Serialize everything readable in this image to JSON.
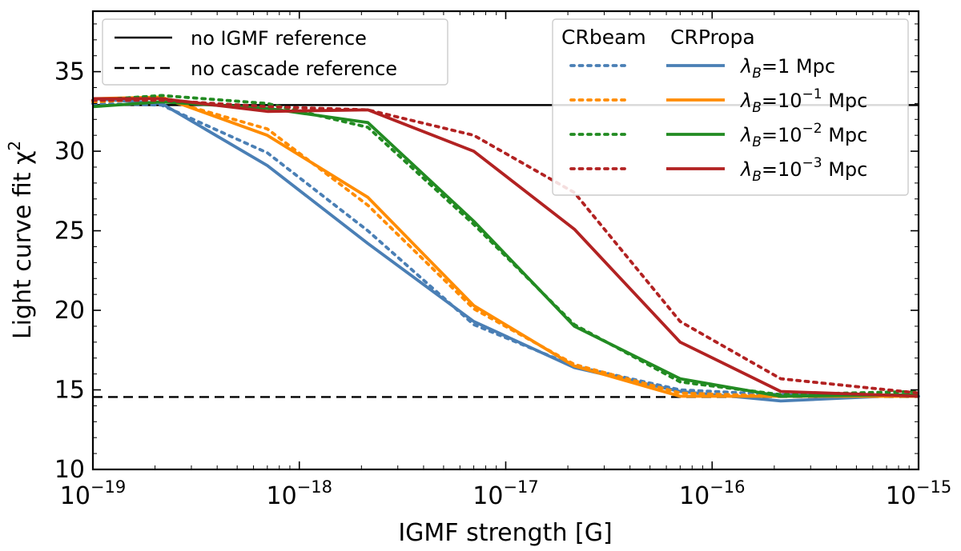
{
  "chart_data": {
    "type": "line",
    "xlabel": "IGMF strength [G]",
    "ylabel": "Light curve fit χ",
    "ylabel_sup": "2",
    "xscale": "log",
    "xlim": [
      1e-19,
      1e-15
    ],
    "ylim": [
      10,
      38.8
    ],
    "x_ticks": [
      {
        "value": 1e-19,
        "base": "10",
        "exp": "−19"
      },
      {
        "value": 1e-18,
        "base": "10",
        "exp": "−18"
      },
      {
        "value": 1e-17,
        "base": "10",
        "exp": "−17"
      },
      {
        "value": 1e-16,
        "base": "10",
        "exp": "−16"
      },
      {
        "value": 1e-15,
        "base": "10",
        "exp": "−15"
      }
    ],
    "y_ticks": [
      {
        "value": 10,
        "label": "10"
      },
      {
        "value": 15,
        "label": "15"
      },
      {
        "value": 20,
        "label": "20"
      },
      {
        "value": 25,
        "label": "25"
      },
      {
        "value": 30,
        "label": "30"
      },
      {
        "value": 35,
        "label": "35"
      }
    ],
    "grid": false,
    "x": [
      1e-19,
      2.15e-19,
      7e-19,
      2.15e-18,
      7e-18,
      2.15e-17,
      7e-17,
      2.15e-16,
      1e-15
    ],
    "reference_lines": [
      {
        "name": "no IGMF reference",
        "y": 32.9,
        "style": "solid",
        "color": "#000000"
      },
      {
        "name": "no cascade reference",
        "y": 14.55,
        "style": "dashed",
        "color": "#000000"
      }
    ],
    "series": [
      {
        "code": "CRPropa",
        "lambda_exp": "",
        "label_value": "1",
        "color": "#4a7fb5",
        "style": "solid",
        "values": [
          33.3,
          33.0,
          29.1,
          24.2,
          19.3,
          16.4,
          14.9,
          14.3,
          14.7
        ]
      },
      {
        "code": "CRbeam",
        "lambda_exp": "",
        "label_value": "1",
        "color": "#4a7fb5",
        "style": "dotted",
        "values": [
          33.0,
          32.9,
          29.9,
          25.0,
          19.1,
          16.5,
          15.0,
          14.7,
          14.6
        ]
      },
      {
        "code": "CRPropa",
        "lambda_exp": "−1",
        "label_value": "10",
        "color": "#ff8c00",
        "style": "solid",
        "values": [
          33.3,
          33.4,
          31.0,
          27.1,
          20.3,
          16.5,
          14.6,
          14.6,
          14.6
        ]
      },
      {
        "code": "CRbeam",
        "lambda_exp": "−1",
        "label_value": "10",
        "color": "#ff8c00",
        "style": "dotted",
        "values": [
          33.1,
          33.3,
          31.4,
          26.6,
          20.1,
          16.6,
          14.8,
          14.6,
          14.6
        ]
      },
      {
        "code": "CRPropa",
        "lambda_exp": "−2",
        "label_value": "10",
        "color": "#228b22",
        "style": "solid",
        "values": [
          32.8,
          33.1,
          32.7,
          31.8,
          25.6,
          19.0,
          15.7,
          14.6,
          14.7
        ]
      },
      {
        "code": "CRbeam",
        "lambda_exp": "−2",
        "label_value": "10",
        "color": "#228b22",
        "style": "dotted",
        "values": [
          33.2,
          33.5,
          33.0,
          31.5,
          25.4,
          19.1,
          15.5,
          14.7,
          14.9
        ]
      },
      {
        "code": "CRPropa",
        "lambda_exp": "−3",
        "label_value": "10",
        "color": "#b22222",
        "style": "solid",
        "values": [
          33.3,
          33.3,
          32.5,
          32.6,
          30.0,
          25.1,
          18.0,
          14.9,
          14.6
        ]
      },
      {
        "code": "CRbeam",
        "lambda_exp": "−3",
        "label_value": "10",
        "color": "#b22222",
        "style": "dotted",
        "values": [
          33.2,
          33.2,
          32.8,
          32.6,
          31.0,
          27.4,
          19.3,
          15.7,
          14.8
        ]
      }
    ],
    "legend_left": {
      "placement": "top-left",
      "entries": [
        {
          "label": "no IGMF reference",
          "style": "solid"
        },
        {
          "label": "no cascade reference",
          "style": "dashed"
        }
      ]
    },
    "legend_right": {
      "placement": "top-right",
      "col1_title": "CRbeam",
      "col2_title": "CRPropa",
      "lambda_symbol": "λ",
      "lambda_sub": "B",
      "unit": "Mpc",
      "rows": [
        {
          "value": "1",
          "exp": "",
          "color": "#4a7fb5"
        },
        {
          "value": "10",
          "exp": "−1",
          "color": "#ff8c00"
        },
        {
          "value": "10",
          "exp": "−2",
          "color": "#228b22"
        },
        {
          "value": "10",
          "exp": "−3",
          "color": "#b22222"
        }
      ]
    }
  }
}
